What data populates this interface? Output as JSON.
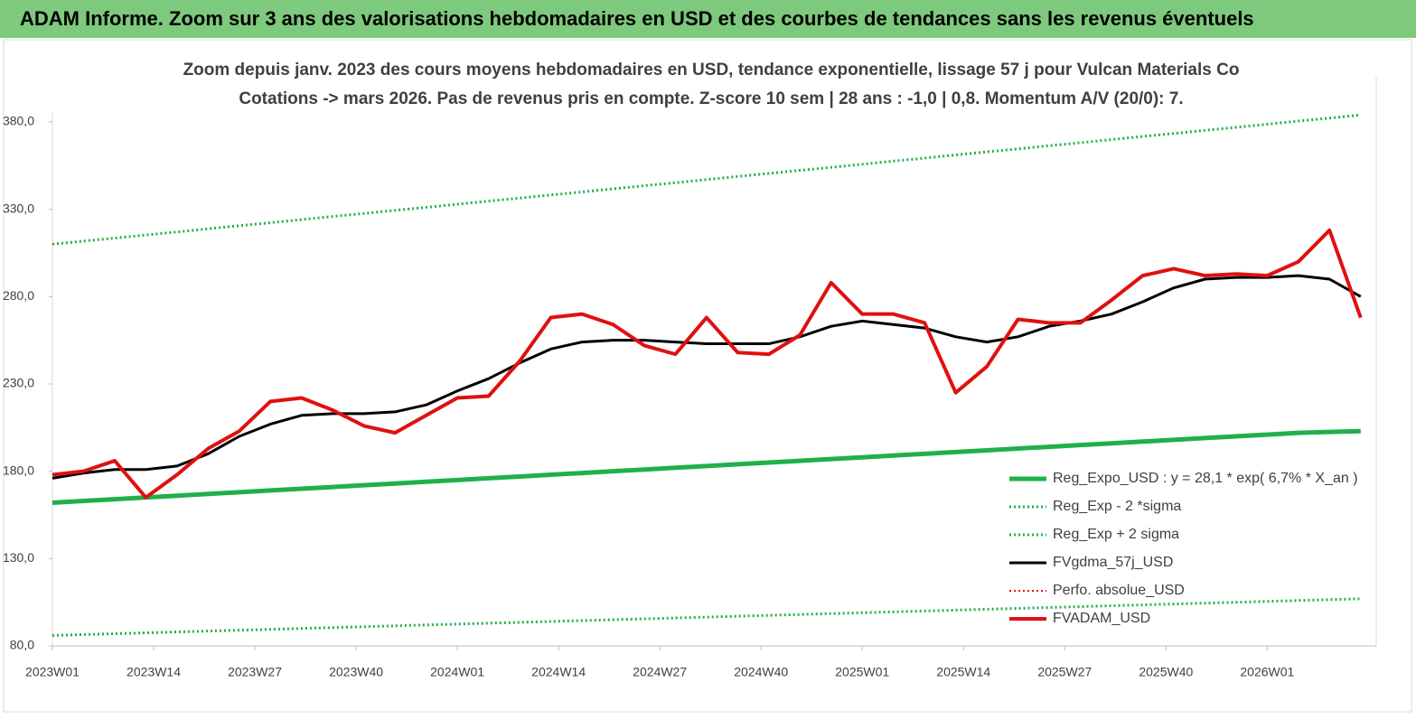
{
  "chart_data": {
    "type": "line",
    "header": "ADAM Informe. Zoom sur 3 ans des valorisations hebdomadaires en USD et des courbes de tendances sans les revenus éventuels",
    "title": "Zoom depuis janv. 2023 des cours moyens hebdomadaires en USD, tendance exponentielle, lissage 57 j pour Vulcan Materials Co",
    "subtitle": "Cotations -> mars 2026. Pas de revenus pris en compte. Z-score 10 sem | 28 ans : -1,0 | 0,8. Momentum A/V (20/0): 7.",
    "x": [
      0,
      4,
      8,
      12,
      16,
      20,
      24,
      28,
      32,
      36,
      40,
      44,
      48,
      52,
      56,
      60,
      64,
      68,
      72,
      76,
      80,
      84,
      88,
      92,
      96,
      100,
      104,
      108,
      112,
      116,
      120,
      124,
      128,
      132,
      136,
      140,
      144,
      148,
      152,
      156,
      160,
      164,
      168
    ],
    "xlim": [
      0,
      170
    ],
    "xticks": [
      {
        "value": 0,
        "label": "2023W01"
      },
      {
        "value": 13,
        "label": "2023W14"
      },
      {
        "value": 26,
        "label": "2023W27"
      },
      {
        "value": 39,
        "label": "2023W40"
      },
      {
        "value": 52,
        "label": "2024W01"
      },
      {
        "value": 65,
        "label": "2024W14"
      },
      {
        "value": 78,
        "label": "2024W27"
      },
      {
        "value": 91,
        "label": "2024W40"
      },
      {
        "value": 104,
        "label": "2025W01"
      },
      {
        "value": 117,
        "label": "2025W14"
      },
      {
        "value": 130,
        "label": "2025W27"
      },
      {
        "value": 143,
        "label": "2025W40"
      },
      {
        "value": 156,
        "label": "2026W01"
      }
    ],
    "ylim": [
      80,
      380
    ],
    "yticks": [
      {
        "value": 80,
        "label": "80,0"
      },
      {
        "value": 130,
        "label": "130,0"
      },
      {
        "value": 180,
        "label": "180,0"
      },
      {
        "value": 230,
        "label": "230,0"
      },
      {
        "value": 280,
        "label": "280,0"
      },
      {
        "value": 330,
        "label": "330,0"
      },
      {
        "value": 380,
        "label": "380,0"
      }
    ],
    "series": [
      {
        "name": "Reg_Expo_USD : y = 28,1 * exp( 6,7% *  X_an )",
        "color": "#1fb04a",
        "dash": "solid",
        "width": 5,
        "values": [
          162,
          163,
          164,
          165,
          166,
          167,
          168,
          169,
          170,
          171,
          172,
          173,
          174,
          175,
          176,
          177,
          178,
          179,
          180,
          181,
          182,
          183,
          184,
          185,
          186,
          187,
          188,
          189,
          190,
          191,
          192,
          193,
          194,
          195,
          196,
          197,
          198,
          199,
          200,
          201,
          202,
          202.5,
          203
        ]
      },
      {
        "name": "Reg_Exp - 2 *sigma",
        "color": "#1fb04a",
        "dash": "dotted",
        "width": 3,
        "values": [
          86,
          86.5,
          87,
          87.5,
          88,
          88.5,
          89,
          89.5,
          90,
          90.5,
          91,
          91.5,
          92,
          92.5,
          93,
          93.5,
          94,
          94.5,
          95,
          95.5,
          96,
          96.5,
          97,
          97.5,
          98,
          98.5,
          99,
          99.5,
          100,
          100.5,
          101,
          101.5,
          102,
          102.5,
          103,
          103.5,
          104,
          104.5,
          105,
          105.5,
          106,
          106.5,
          107
        ]
      },
      {
        "name": "Reg_Exp + 2 sigma",
        "color": "#1fb04a",
        "dash": "dotted",
        "width": 3,
        "values": [
          310,
          311.8,
          313.5,
          315.3,
          317,
          318.8,
          320.6,
          322.3,
          324.1,
          325.9,
          327.6,
          329.4,
          331.1,
          332.9,
          334.7,
          336.4,
          338.2,
          339.9,
          341.7,
          343.5,
          345.2,
          347,
          348.8,
          350.5,
          352.3,
          354,
          355.8,
          357.6,
          359.3,
          361.1,
          362.9,
          364.6,
          366.4,
          368.1,
          369.9,
          371.7,
          373.4,
          375.2,
          376.9,
          378.7,
          380.5,
          382.2,
          384
        ]
      },
      {
        "name": "FVgdma_57j_USD",
        "color": "#000000",
        "dash": "solid",
        "width": 3,
        "values": [
          176,
          179,
          181,
          181,
          183,
          190,
          200,
          207,
          212,
          213,
          213,
          214,
          218,
          226,
          233,
          242,
          250,
          254,
          255,
          255,
          254,
          253,
          253,
          253,
          257,
          263,
          266,
          264,
          262,
          257,
          254,
          257,
          263,
          266,
          270,
          277,
          285,
          290,
          291,
          291,
          292,
          290,
          280
        ]
      },
      {
        "name": "Perfo. absolue_USD",
        "color": "#e01010",
        "dash": "dotted",
        "width": 2,
        "values": [
          178,
          180,
          186,
          165,
          178,
          193,
          203,
          220,
          222,
          215,
          206,
          202,
          212,
          222,
          223,
          243,
          268,
          270,
          264,
          252,
          247,
          268,
          248,
          247,
          258,
          288,
          270,
          270,
          265,
          225,
          240,
          267,
          265,
          265,
          278,
          292,
          296,
          292,
          293,
          292,
          300,
          318,
          268
        ]
      },
      {
        "name": "FVADAM_USD",
        "color": "#e01010",
        "dash": "solid",
        "width": 4,
        "values": [
          178,
          180,
          186,
          165,
          178,
          193,
          203,
          220,
          222,
          215,
          206,
          202,
          212,
          222,
          223,
          243,
          268,
          270,
          264,
          252,
          247,
          268,
          248,
          247,
          258,
          288,
          270,
          270,
          265,
          225,
          240,
          267,
          265,
          265,
          278,
          292,
          296,
          292,
          293,
          292,
          300,
          318,
          268
        ]
      }
    ]
  }
}
